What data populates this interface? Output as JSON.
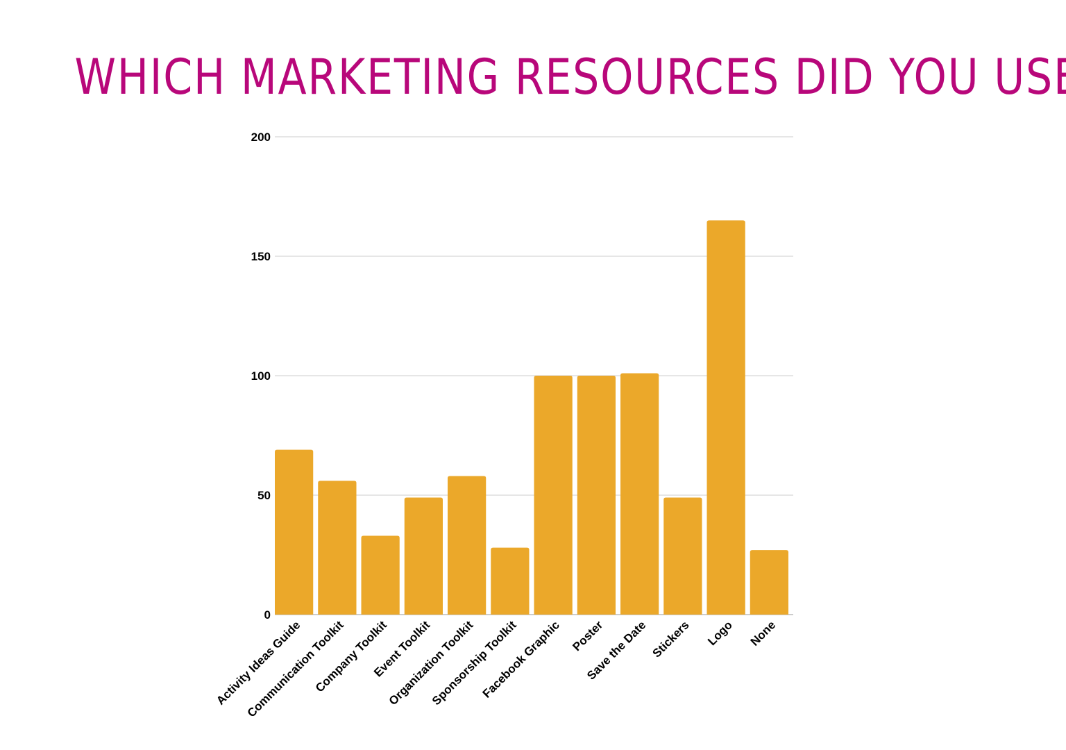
{
  "chart_data": {
    "type": "bar",
    "title": "WHICH MARKETING RESOURCES DID YOU USE?",
    "xlabel": "",
    "ylabel": "",
    "categories": [
      "Activity Ideas Guide",
      "Communication Toolkit",
      "Company Toolkit",
      "Event Toolkit",
      "Organization Toolkit",
      "Sponsorship Toolkit",
      "Facebook Graphic",
      "Poster",
      "Save the Date",
      "Stickers",
      "Logo",
      "None"
    ],
    "values": [
      69,
      56,
      33,
      49,
      58,
      28,
      100,
      100,
      101,
      49,
      165,
      27
    ],
    "ylim": [
      0,
      200
    ],
    "yticks": [
      0,
      50,
      100,
      150,
      200
    ],
    "grid": true,
    "legend": "none",
    "colors": {
      "bar": "#EBA82A",
      "title": "#B8077A",
      "grid": "#CCCCCC"
    }
  }
}
